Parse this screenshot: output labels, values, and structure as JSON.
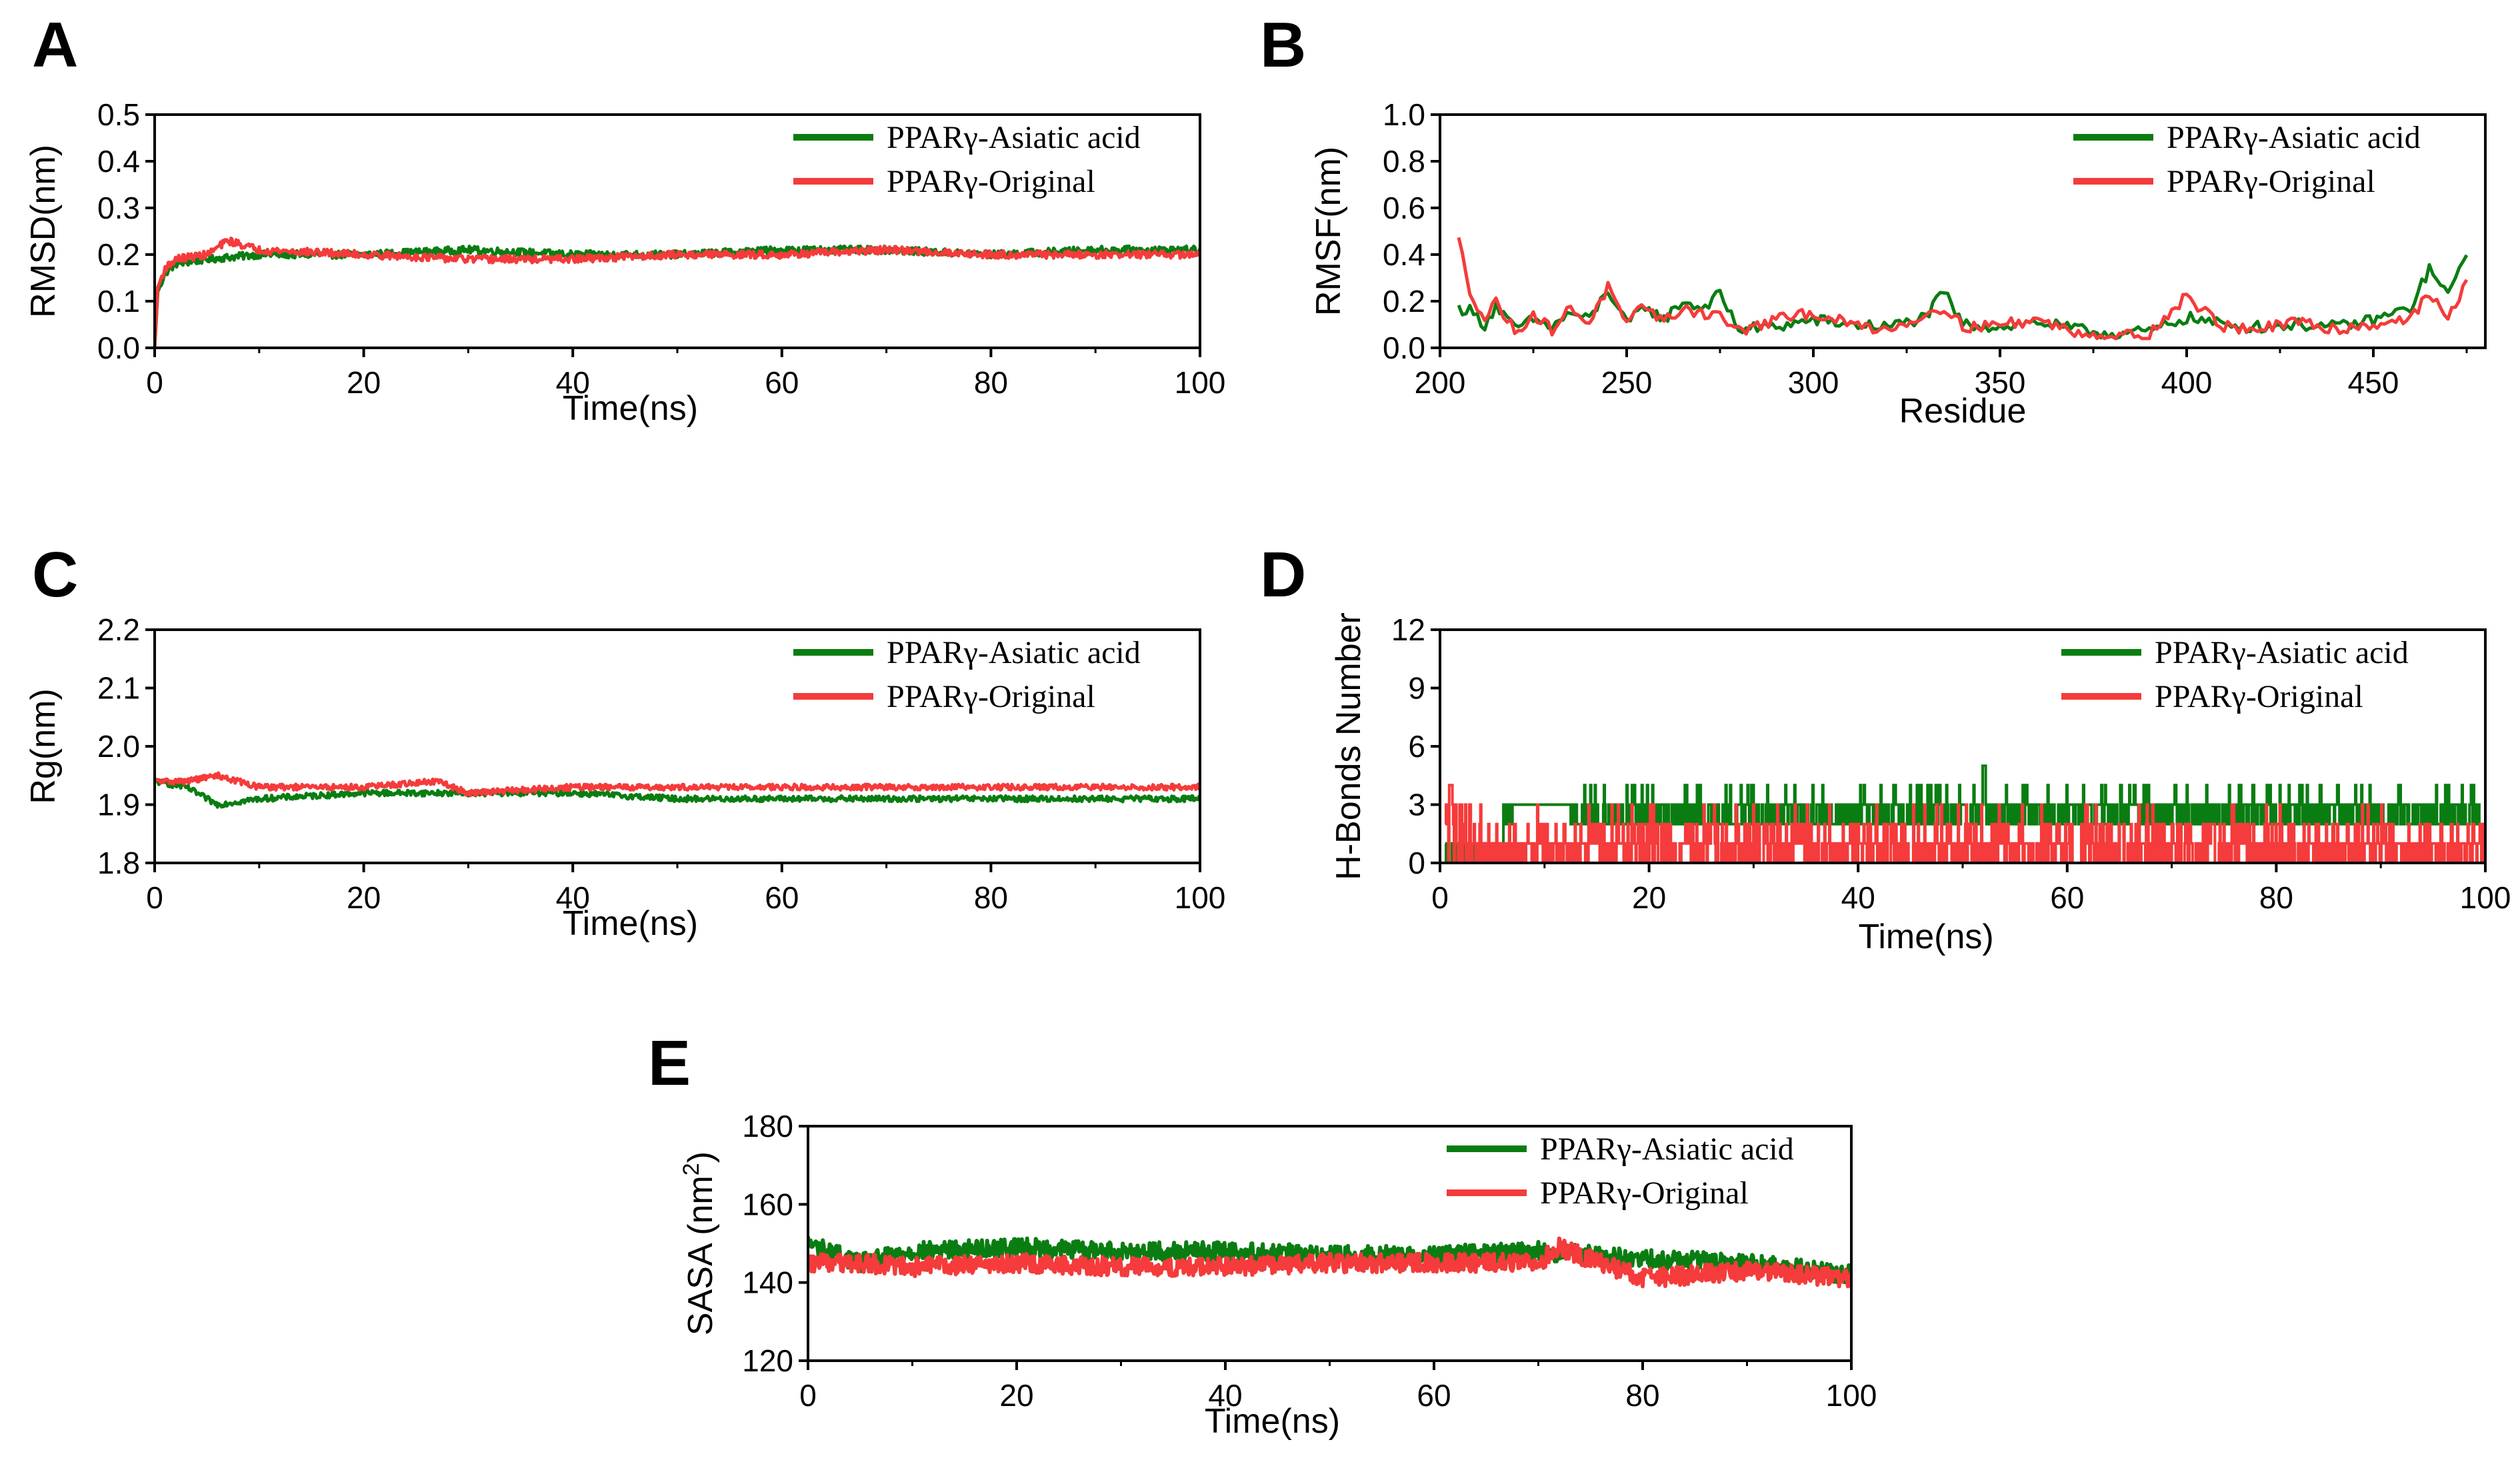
{
  "colors": {
    "asiatic": "#0a7d12",
    "original": "#f53b3b",
    "axis": "#000000",
    "background": "#ffffff"
  },
  "chart_data": [
    {
      "panel": "A",
      "type": "line",
      "xlabel": "Time(ns)",
      "ylabel": "RMSD(nm)",
      "xlim": [
        0,
        100
      ],
      "ylim": [
        0.0,
        0.5
      ],
      "xticks": [
        "0",
        "20",
        "40",
        "60",
        "80",
        "100"
      ],
      "yticks": [
        "0.0",
        "0.1",
        "0.2",
        "0.3",
        "0.4",
        "0.5"
      ],
      "legend_position": "top-right",
      "series": [
        {
          "name": "PPARγ-Asiatic acid",
          "color_key": "asiatic",
          "x": [
            0,
            0.3,
            1,
            2,
            5,
            10,
            20,
            30,
            40,
            50,
            60,
            70,
            80,
            90,
            100
          ],
          "y": [
            0.0,
            0.12,
            0.16,
            0.18,
            0.19,
            0.2,
            0.2,
            0.21,
            0.2,
            0.2,
            0.21,
            0.21,
            0.2,
            0.21,
            0.21
          ]
        },
        {
          "name": "PPARγ-Original",
          "color_key": "original",
          "x": [
            0,
            0.3,
            1,
            2,
            5,
            7,
            10,
            20,
            30,
            40,
            50,
            60,
            70,
            80,
            90,
            100
          ],
          "y": [
            0.0,
            0.13,
            0.17,
            0.19,
            0.2,
            0.23,
            0.21,
            0.2,
            0.19,
            0.19,
            0.2,
            0.2,
            0.21,
            0.2,
            0.2,
            0.2
          ]
        }
      ]
    },
    {
      "panel": "B",
      "type": "line",
      "xlabel": "Residue",
      "ylabel": "RMSF(nm)",
      "xlim": [
        200,
        480
      ],
      "ylim": [
        0.0,
        1.0
      ],
      "xticks": [
        "200",
        "250",
        "300",
        "350",
        "400",
        "450"
      ],
      "yticks": [
        "0.0",
        "0.2",
        "0.4",
        "0.6",
        "0.8",
        "1.0"
      ],
      "legend_position": "top-right",
      "series": [
        {
          "name": "PPARγ-Asiatic acid",
          "color_key": "asiatic",
          "x": [
            205,
            208,
            212,
            215,
            220,
            225,
            230,
            235,
            240,
            245,
            250,
            255,
            260,
            265,
            270,
            275,
            280,
            290,
            300,
            310,
            320,
            330,
            335,
            340,
            350,
            360,
            370,
            380,
            390,
            400,
            410,
            420,
            430,
            440,
            450,
            460,
            465,
            470,
            475
          ],
          "y": [
            0.17,
            0.16,
            0.1,
            0.18,
            0.08,
            0.12,
            0.09,
            0.15,
            0.12,
            0.25,
            0.1,
            0.18,
            0.12,
            0.2,
            0.17,
            0.23,
            0.08,
            0.09,
            0.12,
            0.1,
            0.09,
            0.13,
            0.24,
            0.1,
            0.09,
            0.11,
            0.08,
            0.06,
            0.07,
            0.13,
            0.1,
            0.09,
            0.1,
            0.09,
            0.12,
            0.17,
            0.34,
            0.22,
            0.42
          ]
        },
        {
          "name": "PPARγ-Original",
          "color_key": "original",
          "x": [
            205,
            208,
            212,
            215,
            220,
            225,
            230,
            235,
            240,
            245,
            250,
            255,
            260,
            265,
            270,
            275,
            280,
            290,
            300,
            310,
            320,
            330,
            335,
            340,
            350,
            360,
            370,
            380,
            390,
            400,
            410,
            420,
            430,
            440,
            450,
            460,
            465,
            470,
            475
          ],
          "y": [
            0.46,
            0.25,
            0.12,
            0.2,
            0.07,
            0.14,
            0.08,
            0.17,
            0.11,
            0.26,
            0.09,
            0.19,
            0.11,
            0.17,
            0.15,
            0.14,
            0.07,
            0.12,
            0.15,
            0.1,
            0.08,
            0.14,
            0.18,
            0.09,
            0.1,
            0.12,
            0.07,
            0.05,
            0.06,
            0.22,
            0.09,
            0.08,
            0.11,
            0.08,
            0.1,
            0.13,
            0.23,
            0.12,
            0.29
          ]
        }
      ]
    },
    {
      "panel": "C",
      "type": "line",
      "xlabel": "Time(ns)",
      "ylabel": "Rg(nm)",
      "xlim": [
        0,
        100
      ],
      "ylim": [
        1.8,
        2.2
      ],
      "xticks": [
        "0",
        "20",
        "40",
        "60",
        "80",
        "100"
      ],
      "yticks": [
        "1.8",
        "1.9",
        "2.0",
        "2.1",
        "2.2"
      ],
      "legend_position": "top-right",
      "series": [
        {
          "name": "PPARγ-Asiatic acid",
          "color_key": "asiatic",
          "x": [
            0,
            3,
            6,
            10,
            20,
            30,
            40,
            50,
            60,
            70,
            80,
            90,
            100
          ],
          "y": [
            1.94,
            1.93,
            1.9,
            1.91,
            1.92,
            1.92,
            1.92,
            1.91,
            1.91,
            1.91,
            1.91,
            1.91,
            1.91
          ]
        },
        {
          "name": "PPARγ-Original",
          "color_key": "original",
          "x": [
            0,
            3,
            6,
            10,
            20,
            27,
            30,
            40,
            50,
            60,
            70,
            80,
            90,
            100
          ],
          "y": [
            1.94,
            1.94,
            1.95,
            1.93,
            1.93,
            1.94,
            1.92,
            1.93,
            1.93,
            1.93,
            1.93,
            1.93,
            1.93,
            1.93
          ]
        }
      ]
    },
    {
      "panel": "D",
      "type": "line",
      "xlabel": "Time(ns)",
      "ylabel": "H-Bonds Number",
      "xlim": [
        0,
        100
      ],
      "ylim": [
        0,
        12
      ],
      "xticks": [
        "0",
        "20",
        "40",
        "60",
        "80",
        "100"
      ],
      "yticks": [
        "0",
        "3",
        "6",
        "9",
        "12"
      ],
      "legend_position": "top-right",
      "series": [
        {
          "name": "PPARγ-Asiatic acid",
          "color_key": "asiatic",
          "typical_range": [
            2,
            3
          ],
          "peak": [
            52,
            5
          ]
        },
        {
          "name": "PPARγ-Original",
          "color_key": "original",
          "typical_range": [
            0,
            2
          ],
          "peak": [
            1,
            4
          ]
        }
      ]
    },
    {
      "panel": "E",
      "type": "line",
      "xlabel": "Time(ns)",
      "ylabel": "SASA (nm²)",
      "xlim": [
        0,
        100
      ],
      "ylim": [
        120,
        180
      ],
      "xticks": [
        "0",
        "20",
        "40",
        "60",
        "80",
        "100"
      ],
      "yticks": [
        "120",
        "140",
        "160",
        "180"
      ],
      "legend_position": "top-right",
      "series": [
        {
          "name": "PPARγ-Asiatic acid",
          "color_key": "asiatic",
          "x": [
            0,
            5,
            10,
            20,
            30,
            40,
            50,
            60,
            70,
            80,
            90,
            100
          ],
          "y": [
            150,
            145,
            148,
            149,
            148,
            148,
            147,
            147,
            148,
            146,
            145,
            142
          ]
        },
        {
          "name": "PPARγ-Original",
          "color_key": "original",
          "x": [
            0,
            5,
            10,
            20,
            30,
            40,
            50,
            60,
            70,
            72,
            80,
            90,
            100
          ],
          "y": [
            145,
            145,
            144,
            145,
            144,
            144,
            145,
            145,
            145,
            149,
            141,
            143,
            141
          ]
        }
      ]
    }
  ]
}
